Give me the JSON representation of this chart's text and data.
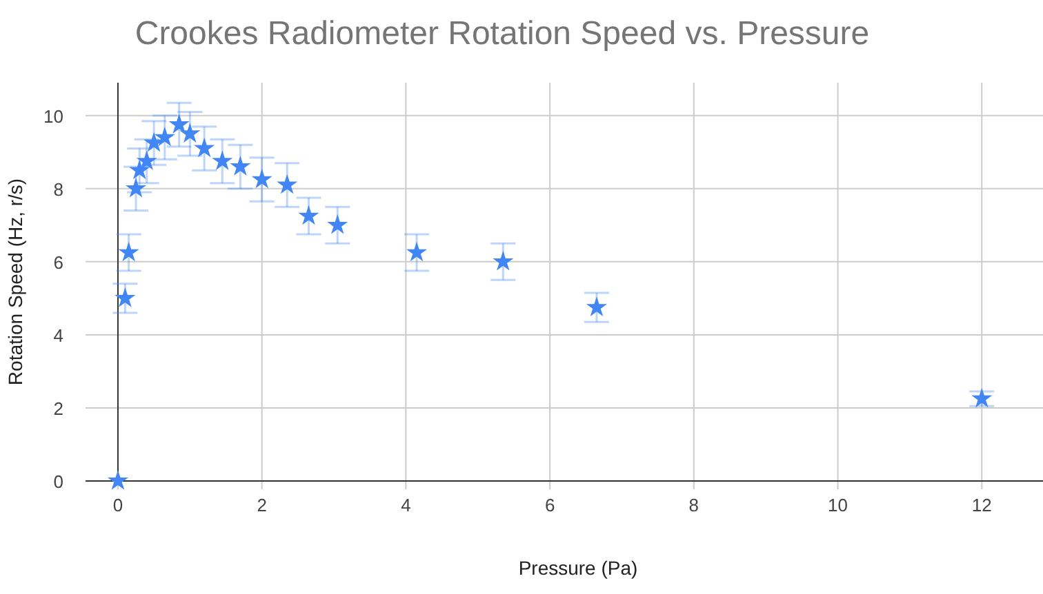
{
  "chart_data": {
    "type": "scatter",
    "title": "Crookes Radiometer Rotation Speed vs. Pressure",
    "xlabel": "Pressure (Pa)",
    "ylabel": "Rotation Speed (Hz, r/s)",
    "x": [
      0,
      0.1,
      0.15,
      0.25,
      0.3,
      0.4,
      0.5,
      0.65,
      0.85,
      1.0,
      1.2,
      1.45,
      1.7,
      2.0,
      2.35,
      2.65,
      3.05,
      4.15,
      5.35,
      6.65,
      12
    ],
    "series": [
      {
        "color": "#4285f4",
        "values": [
          0,
          5.0,
          6.25,
          8.0,
          8.5,
          8.75,
          9.25,
          9.4,
          9.75,
          9.5,
          9.1,
          8.75,
          8.6,
          8.25,
          8.1,
          7.25,
          7.0,
          6.25,
          6.0,
          4.75,
          2.25
        ],
        "errors": [
          null,
          0.4,
          0.5,
          0.6,
          0.6,
          0.6,
          0.6,
          0.6,
          0.6,
          0.6,
          0.6,
          0.6,
          0.6,
          0.6,
          0.6,
          0.5,
          0.5,
          0.5,
          0.5,
          0.4,
          0.2
        ]
      }
    ],
    "xlim": [
      -0.45,
      12.85
    ],
    "ylim": [
      0,
      10.9
    ],
    "xticks": [
      0,
      2,
      4,
      6,
      8,
      10,
      12
    ],
    "yticks": [
      0,
      2,
      4,
      6,
      8,
      10
    ],
    "grid": true,
    "marker": "star"
  }
}
